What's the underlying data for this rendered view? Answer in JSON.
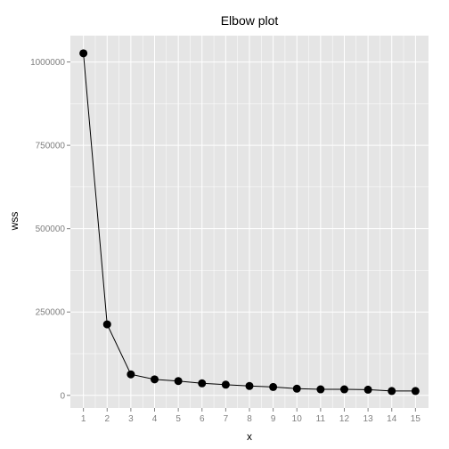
{
  "chart_data": {
    "type": "line",
    "title": "Elbow plot",
    "xlabel": "x",
    "ylabel": "wss",
    "x": [
      1,
      2,
      3,
      4,
      5,
      6,
      7,
      8,
      9,
      10,
      11,
      12,
      13,
      14,
      15
    ],
    "series": [
      {
        "values": [
          1026000,
          213000,
          63000,
          48000,
          43000,
          36000,
          32000,
          28000,
          25000,
          20000,
          18000,
          18000,
          17000,
          13000,
          13000
        ],
        "markers": true
      }
    ],
    "xlim": [
      0.45,
      15.55
    ],
    "ylim": [
      -38000,
      1079000
    ],
    "x_ticks": [
      1,
      2,
      3,
      4,
      5,
      6,
      7,
      8,
      9,
      10,
      11,
      12,
      13,
      14,
      15
    ],
    "x_tick_labels": [
      "1",
      "2",
      "3",
      "4",
      "5",
      "6",
      "7",
      "8",
      "9",
      "10",
      "11",
      "12",
      "13",
      "14",
      "15"
    ],
    "y_ticks": [
      0,
      250000,
      500000,
      750000,
      1000000
    ],
    "y_tick_labels": [
      "0",
      "250000",
      "500000",
      "750000",
      "1000000"
    ],
    "grid": true,
    "panel_color": "#e5e5e5",
    "grid_color": "#ffffff",
    "line_color": "#000000",
    "marker_color": "#000000"
  }
}
